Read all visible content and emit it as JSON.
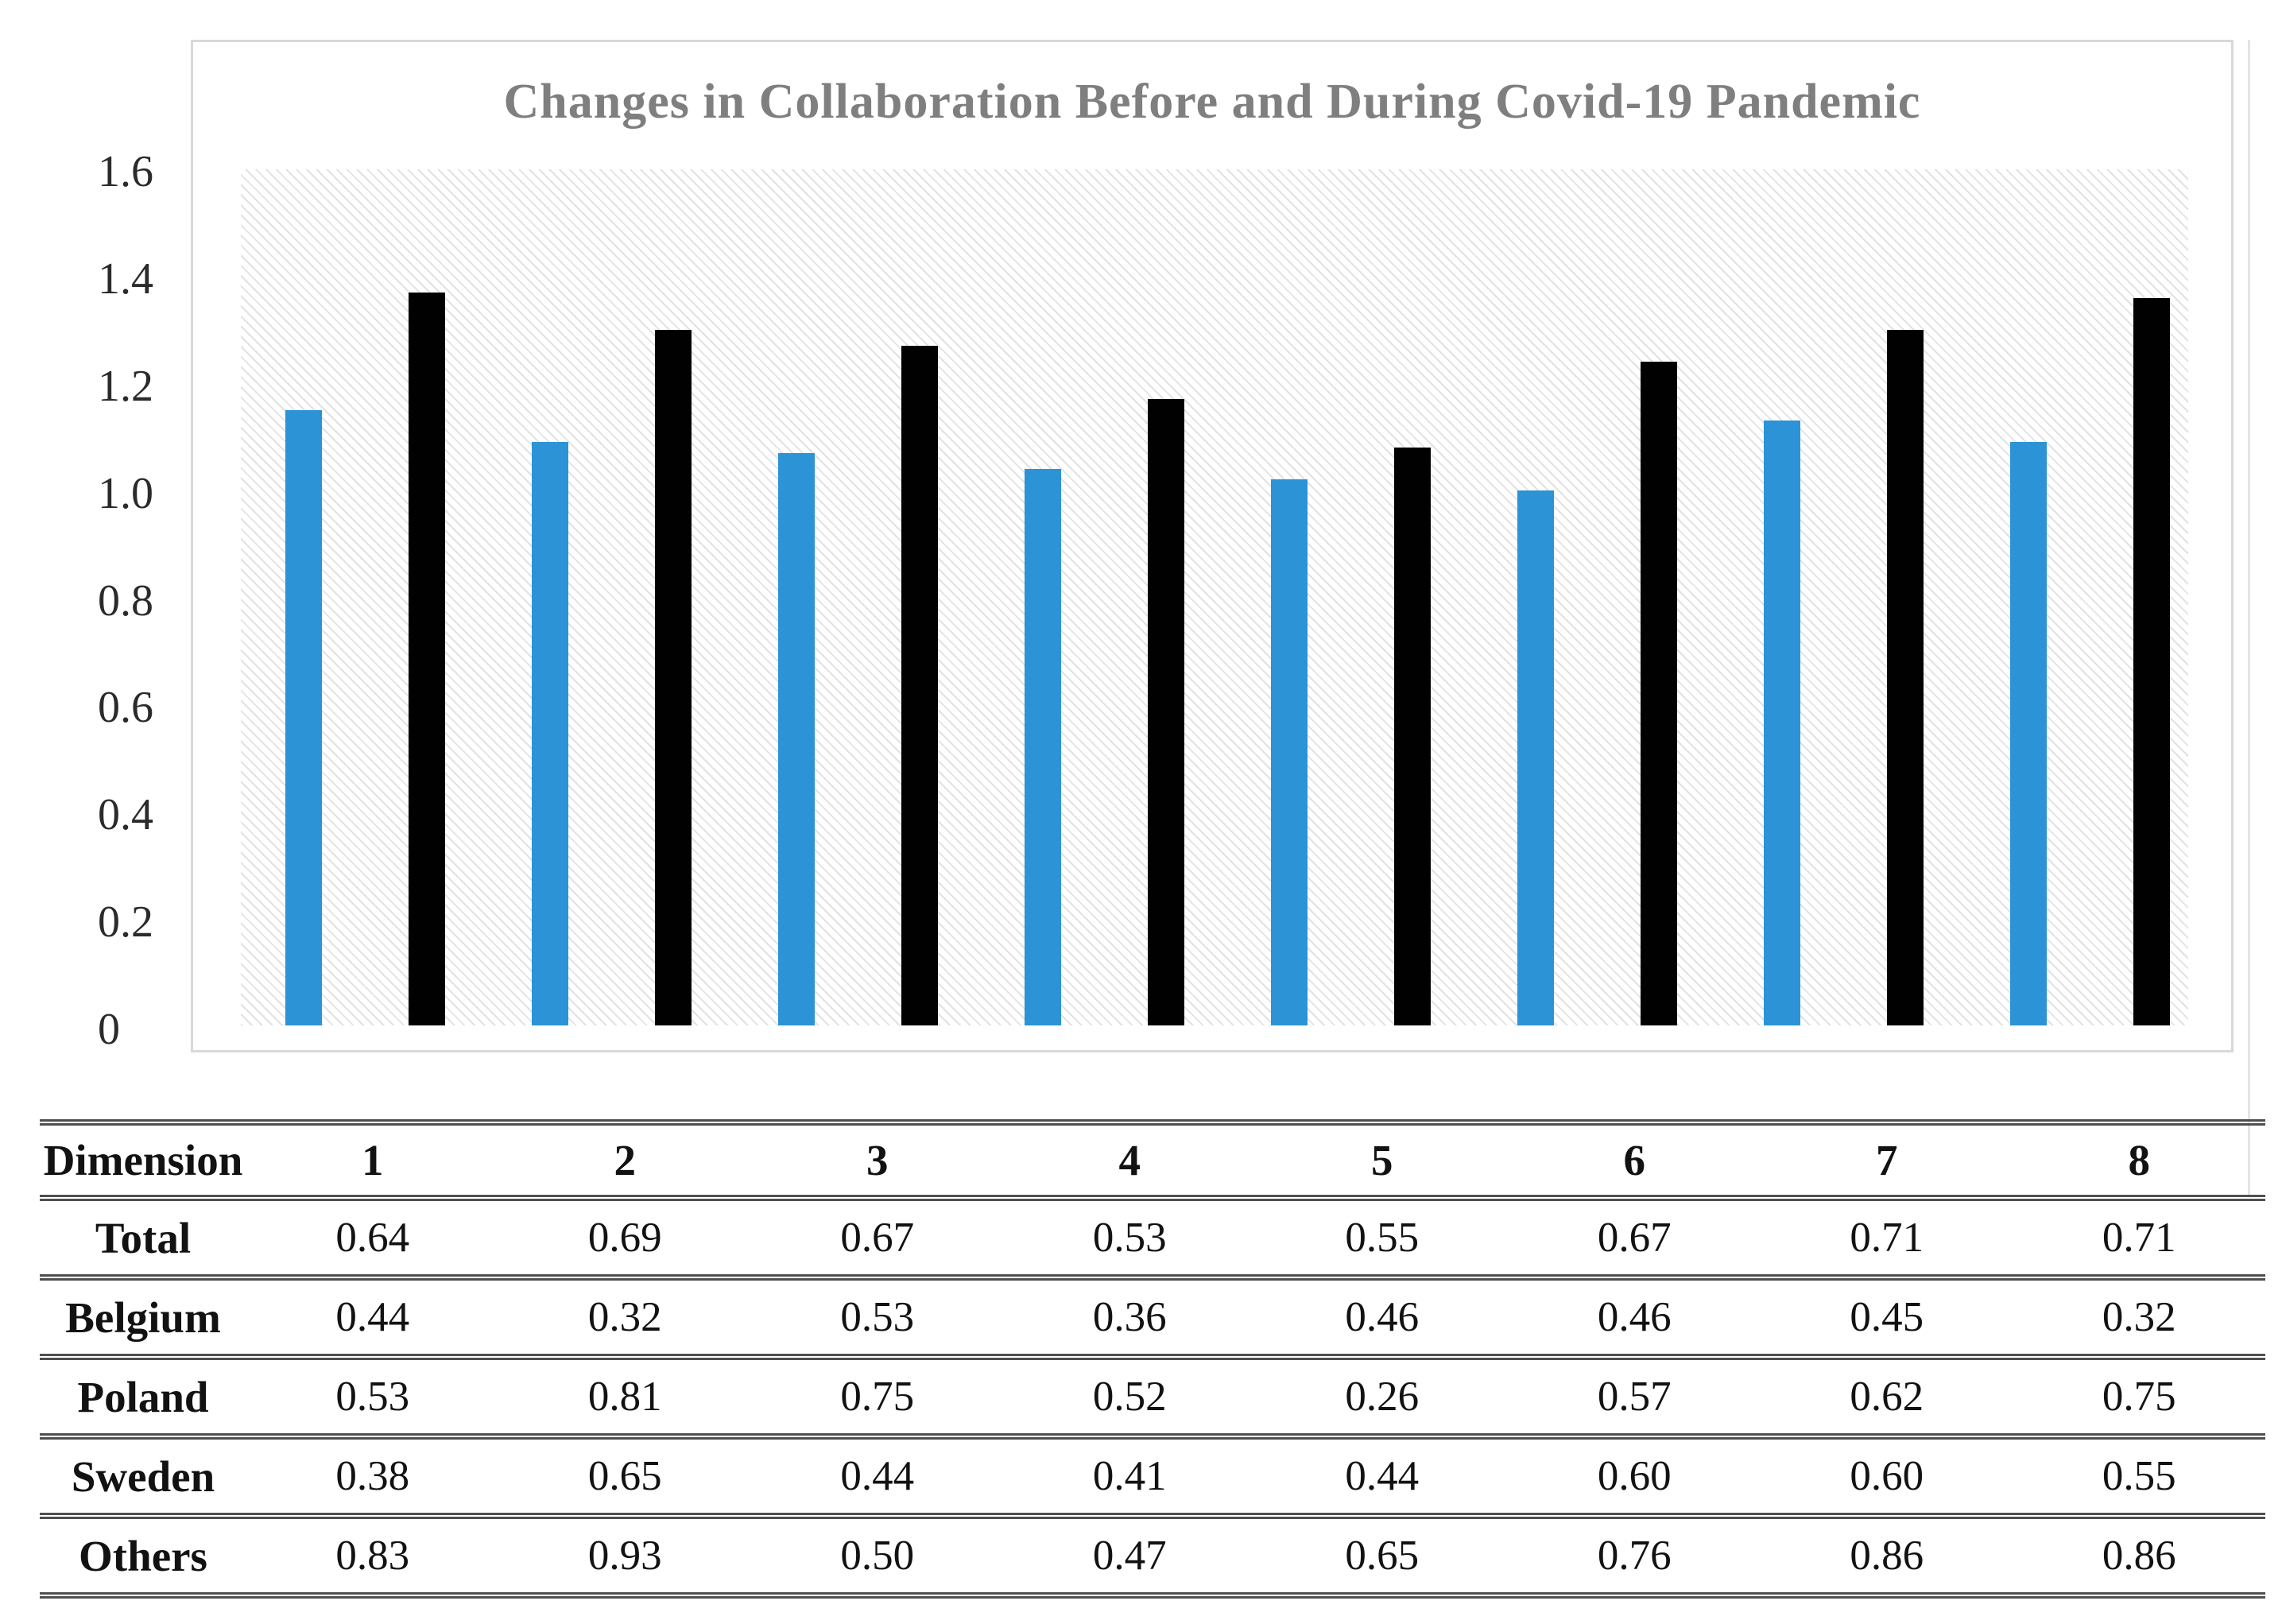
{
  "chart_data": {
    "type": "bar",
    "title": "Changes in Collaboration Before and During Covid-19 Pandemic",
    "title_color": "#7f7f7f",
    "categories": [
      "1",
      "2",
      "3",
      "4",
      "5",
      "6",
      "7",
      "8"
    ],
    "series": [
      {
        "name": "blue-series",
        "color": "#2b93d6",
        "values": [
          1.15,
          1.09,
          1.07,
          1.04,
          1.02,
          1.0,
          1.13,
          1.09
        ]
      },
      {
        "name": "black-series",
        "color": "#010101",
        "values": [
          1.37,
          1.3,
          1.27,
          1.17,
          1.08,
          1.24,
          1.3,
          1.36
        ]
      }
    ],
    "xlabel": "",
    "ylabel": "",
    "ylim": [
      0,
      1.6
    ],
    "yticks": [
      "1.6",
      "1.4",
      "1.2",
      "1.0",
      "0.8",
      "0.6",
      "0.4",
      "0.2",
      "0"
    ],
    "grid": false,
    "legend": "none",
    "plot_background": "light-diagonal-hatch"
  },
  "table": {
    "header": [
      "Dimension",
      "1",
      "2",
      "3",
      "4",
      "5",
      "6",
      "7",
      "8"
    ],
    "rows": [
      {
        "label": "Total",
        "values": [
          "0.64",
          "0.69",
          "0.67",
          "0.53",
          "0.55",
          "0.67",
          "0.71",
          "0.71"
        ]
      },
      {
        "label": "Belgium",
        "values": [
          "0.44",
          "0.32",
          "0.53",
          "0.36",
          "0.46",
          "0.46",
          "0.45",
          "0.32"
        ]
      },
      {
        "label": "Poland",
        "values": [
          "0.53",
          "0.81",
          "0.75",
          "0.52",
          "0.26",
          "0.57",
          "0.62",
          "0.75"
        ]
      },
      {
        "label": "Sweden",
        "values": [
          "0.38",
          "0.65",
          "0.44",
          "0.41",
          "0.44",
          "0.60",
          "0.60",
          "0.55"
        ]
      },
      {
        "label": "Others",
        "values": [
          "0.83",
          "0.93",
          "0.50",
          "0.47",
          "0.65",
          "0.76",
          "0.86",
          "0.86"
        ]
      }
    ]
  }
}
